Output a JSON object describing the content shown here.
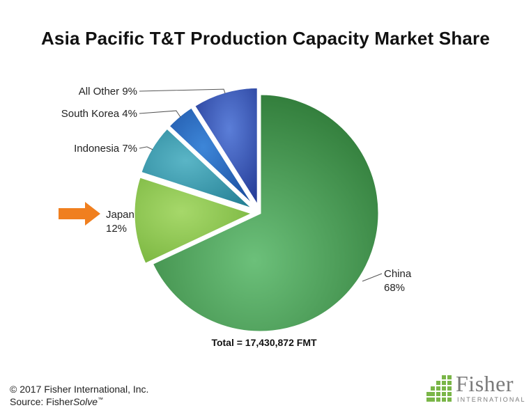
{
  "chart_data": {
    "type": "pie",
    "title": "Asia Pacific T&T Production Capacity Market Share",
    "total_label": "Total = 17,430,872 FMT",
    "slices": [
      {
        "name": "China",
        "value": 68,
        "label_name": "China",
        "label_pct": "68%",
        "color": "#3f8f46",
        "exploded": false
      },
      {
        "name": "Japan",
        "value": 12,
        "label_name": "Japan",
        "label_pct": "12%",
        "color": "#8cc63f",
        "exploded": true
      },
      {
        "name": "Indonesia",
        "value": 7,
        "label_full": "Indonesia 7%",
        "color": "#2e93a8",
        "exploded": true
      },
      {
        "name": "South Korea",
        "value": 4,
        "label_full": "South Korea 4%",
        "color": "#1f5fb5",
        "exploded": true
      },
      {
        "name": "All Other",
        "value": 9,
        "label_full": "All Other 9%",
        "color": "#2b45a0",
        "exploded": true
      }
    ],
    "highlight": "Japan",
    "highlight_color": "#f07f1f"
  },
  "footer": {
    "copyright": "© 2017 Fisher International, Inc.",
    "source_prefix": "Source: Fisher",
    "source_italic": "Solve",
    "source_tm": "™"
  },
  "logo": {
    "word": "Fisher",
    "sub": "INTERNATIONAL",
    "color": "#7a7a7a",
    "mark_color": "#7ab648"
  }
}
